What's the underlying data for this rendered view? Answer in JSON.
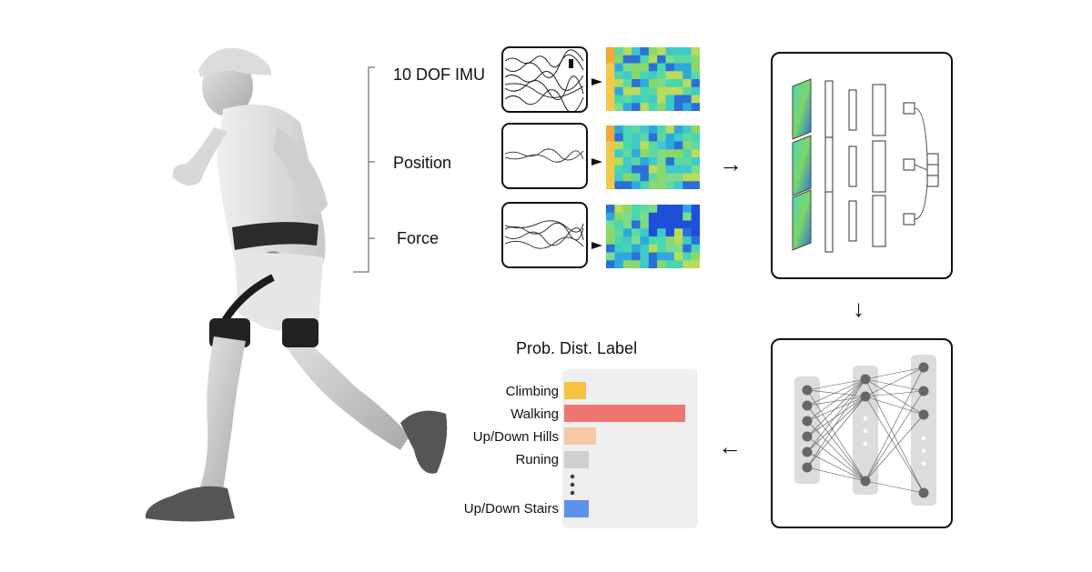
{
  "sensors": [
    {
      "id": "imu",
      "label": "10 DOF IMU"
    },
    {
      "id": "position",
      "label": "Position"
    },
    {
      "id": "force",
      "label": "Force"
    }
  ],
  "output": {
    "title": "Prob. Dist. Label",
    "bars": [
      {
        "label": "Climbing",
        "value": 0.18,
        "color": "#f5c242"
      },
      {
        "label": "Walking",
        "value": 1.0,
        "color": "#ef7670"
      },
      {
        "label": "Up/Down Hills",
        "value": 0.26,
        "color": "#f6c8a6"
      },
      {
        "label": "Runing",
        "value": 0.2,
        "color": "#cfcfcf"
      },
      {
        "label": "Up/Down Stairs",
        "value": 0.2,
        "color": "#5d92ea"
      }
    ]
  },
  "icons": {
    "right_arrow": "→",
    "down_arrow": "↓",
    "left_arrow": "←"
  },
  "colors": {
    "heatmap_low": "#1f4fd8",
    "heatmap_mid": "#49d6b0",
    "heatmap_high": "#f0a93a"
  }
}
